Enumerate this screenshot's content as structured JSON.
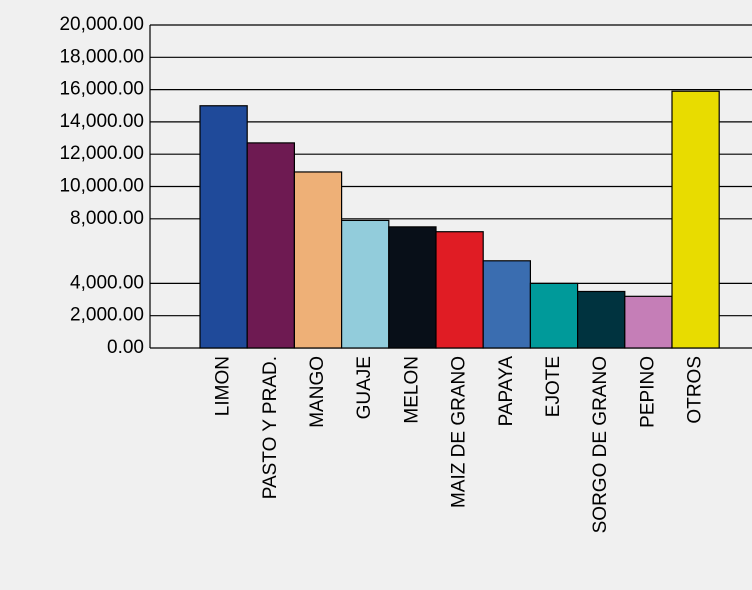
{
  "chart_data": {
    "type": "bar",
    "categories": [
      "LIMON",
      "PASTO Y PRAD.",
      "MANGO",
      "GUAJE",
      "MELON",
      "MAIZ DE GRANO",
      "PAPAYA",
      "EJOTE",
      "SORGO DE GRANO",
      "PEPINO",
      "OTROS"
    ],
    "values": [
      15000,
      12700,
      10900,
      7900,
      7500,
      7200,
      5400,
      4000,
      3500,
      3200,
      15900
    ],
    "colors": [
      "#1f4a9a",
      "#6e1a52",
      "#eeb077",
      "#92ccdb",
      "#080f18",
      "#e01c24",
      "#3a6db0",
      "#009a9a",
      "#00333f",
      "#c57eb7",
      "#e8dc00"
    ],
    "ylim": [
      0,
      20000
    ],
    "yticks": [
      {
        "value": 0,
        "label": "0.00"
      },
      {
        "value": 2000,
        "label": "2,000.00"
      },
      {
        "value": 4000,
        "label": "4,000.00"
      },
      {
        "value": 8000,
        "label": "8,000.00"
      },
      {
        "value": 10000,
        "label": "10,000.00"
      },
      {
        "value": 12000,
        "label": "12,000.00"
      },
      {
        "value": 14000,
        "label": "14,000.00"
      },
      {
        "value": 16000,
        "label": "16,000.00"
      },
      {
        "value": 18000,
        "label": "18,000.00"
      },
      {
        "value": 20000,
        "label": "20,000.00"
      }
    ],
    "grid": true
  }
}
